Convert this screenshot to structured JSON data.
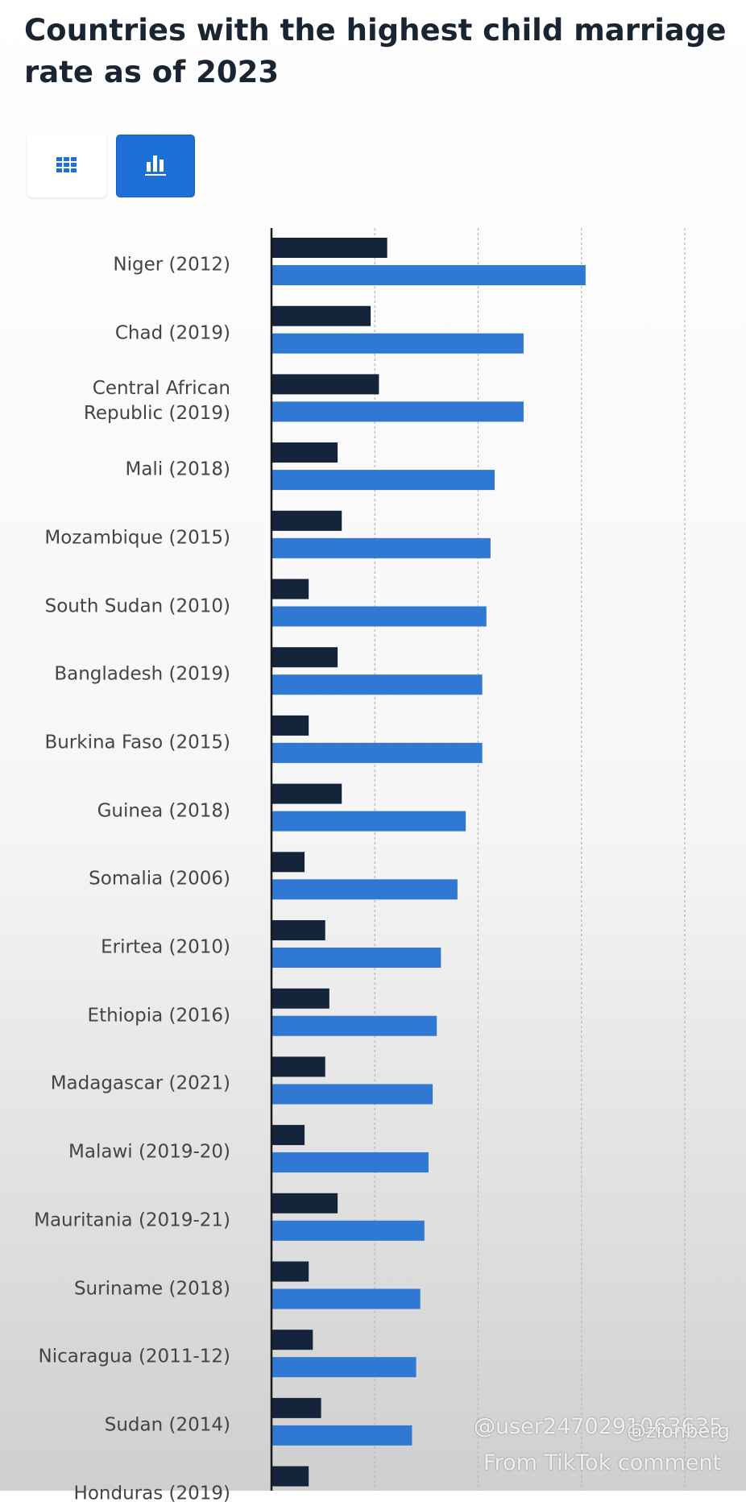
{
  "chart_data": {
    "type": "hbar",
    "title": "Countries with the highest child marriage rate as of 2023",
    "categories": [
      "Niger (2012)",
      "Chad (2019)",
      "Central African Republic (2019)",
      "Mali (2018)",
      "Mozambique (2015)",
      "South Sudan (2010)",
      "Bangladesh (2019)",
      "Burkina Faso (2015)",
      "Guinea (2018)",
      "Somalia (2006)",
      "Erirtea (2010)",
      "Ethiopia (2016)",
      "Madagascar (2021)",
      "Malawi (2019-20)",
      "Mauritania (2019-21)",
      "Suriname (2018)",
      "Nicaragua (2011-12)",
      "Sudan (2014)",
      "Honduras (2019)"
    ],
    "series": [
      {
        "color": "#14243a",
        "values": [
          28,
          24,
          26,
          16,
          17,
          9,
          16,
          9,
          17,
          8,
          13,
          14,
          13,
          8,
          16,
          9,
          10,
          12,
          9
        ]
      },
      {
        "color": "#2f78d4",
        "values": [
          76,
          61,
          61,
          54,
          53,
          52,
          51,
          51,
          47,
          45,
          41,
          40,
          39,
          38,
          37,
          36,
          35,
          34,
          null
        ]
      }
    ],
    "xlim": [
      0,
      100
    ],
    "xticks": [
      0,
      25,
      50,
      75,
      100
    ],
    "grid": true
  },
  "watermarks": [
    "@user2470291063635",
    "@zionberg",
    "From TikTok comment"
  ]
}
